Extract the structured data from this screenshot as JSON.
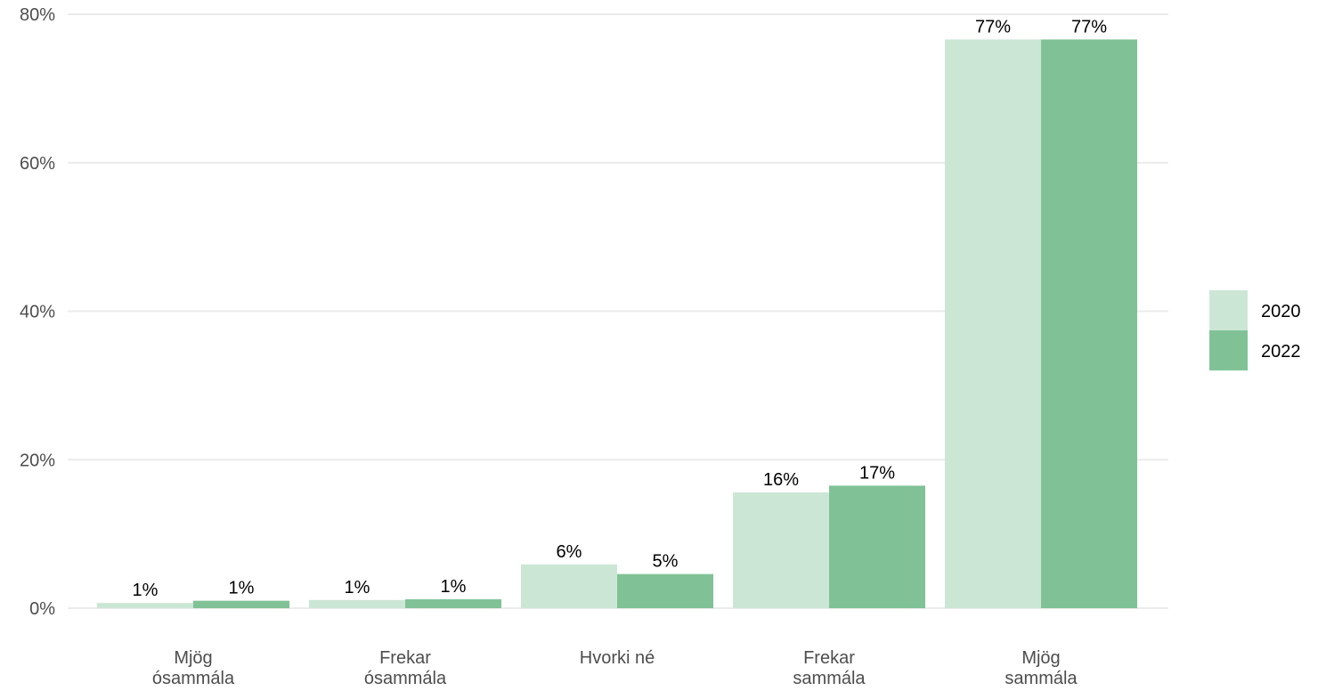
{
  "chart_data": {
    "type": "bar",
    "categories": [
      [
        "Mjög",
        "ósammála"
      ],
      [
        "Frekar",
        "ósammála"
      ],
      [
        "Hvorki né"
      ],
      [
        "Frekar",
        "sammála"
      ],
      [
        "Mjög",
        "sammála"
      ]
    ],
    "series": [
      {
        "name": "2020",
        "color": "#cce6d6",
        "values": [
          0.7,
          1.1,
          5.9,
          15.6,
          76.6
        ],
        "labels": [
          "1%",
          "1%",
          "6%",
          "16%",
          "77%"
        ]
      },
      {
        "name": "2022",
        "color": "#80c296",
        "values": [
          1.0,
          1.2,
          4.6,
          16.5,
          76.6
        ],
        "labels": [
          "1%",
          "1%",
          "5%",
          "17%",
          "77%"
        ]
      }
    ],
    "ylim": [
      0,
      80
    ],
    "yticks": [
      0,
      20,
      40,
      60,
      80
    ],
    "ytick_labels": [
      "0%",
      "20%",
      "40%",
      "60%",
      "80%"
    ],
    "grid": true,
    "legend_position": "right",
    "title": "",
    "xlabel": "",
    "ylabel": ""
  }
}
